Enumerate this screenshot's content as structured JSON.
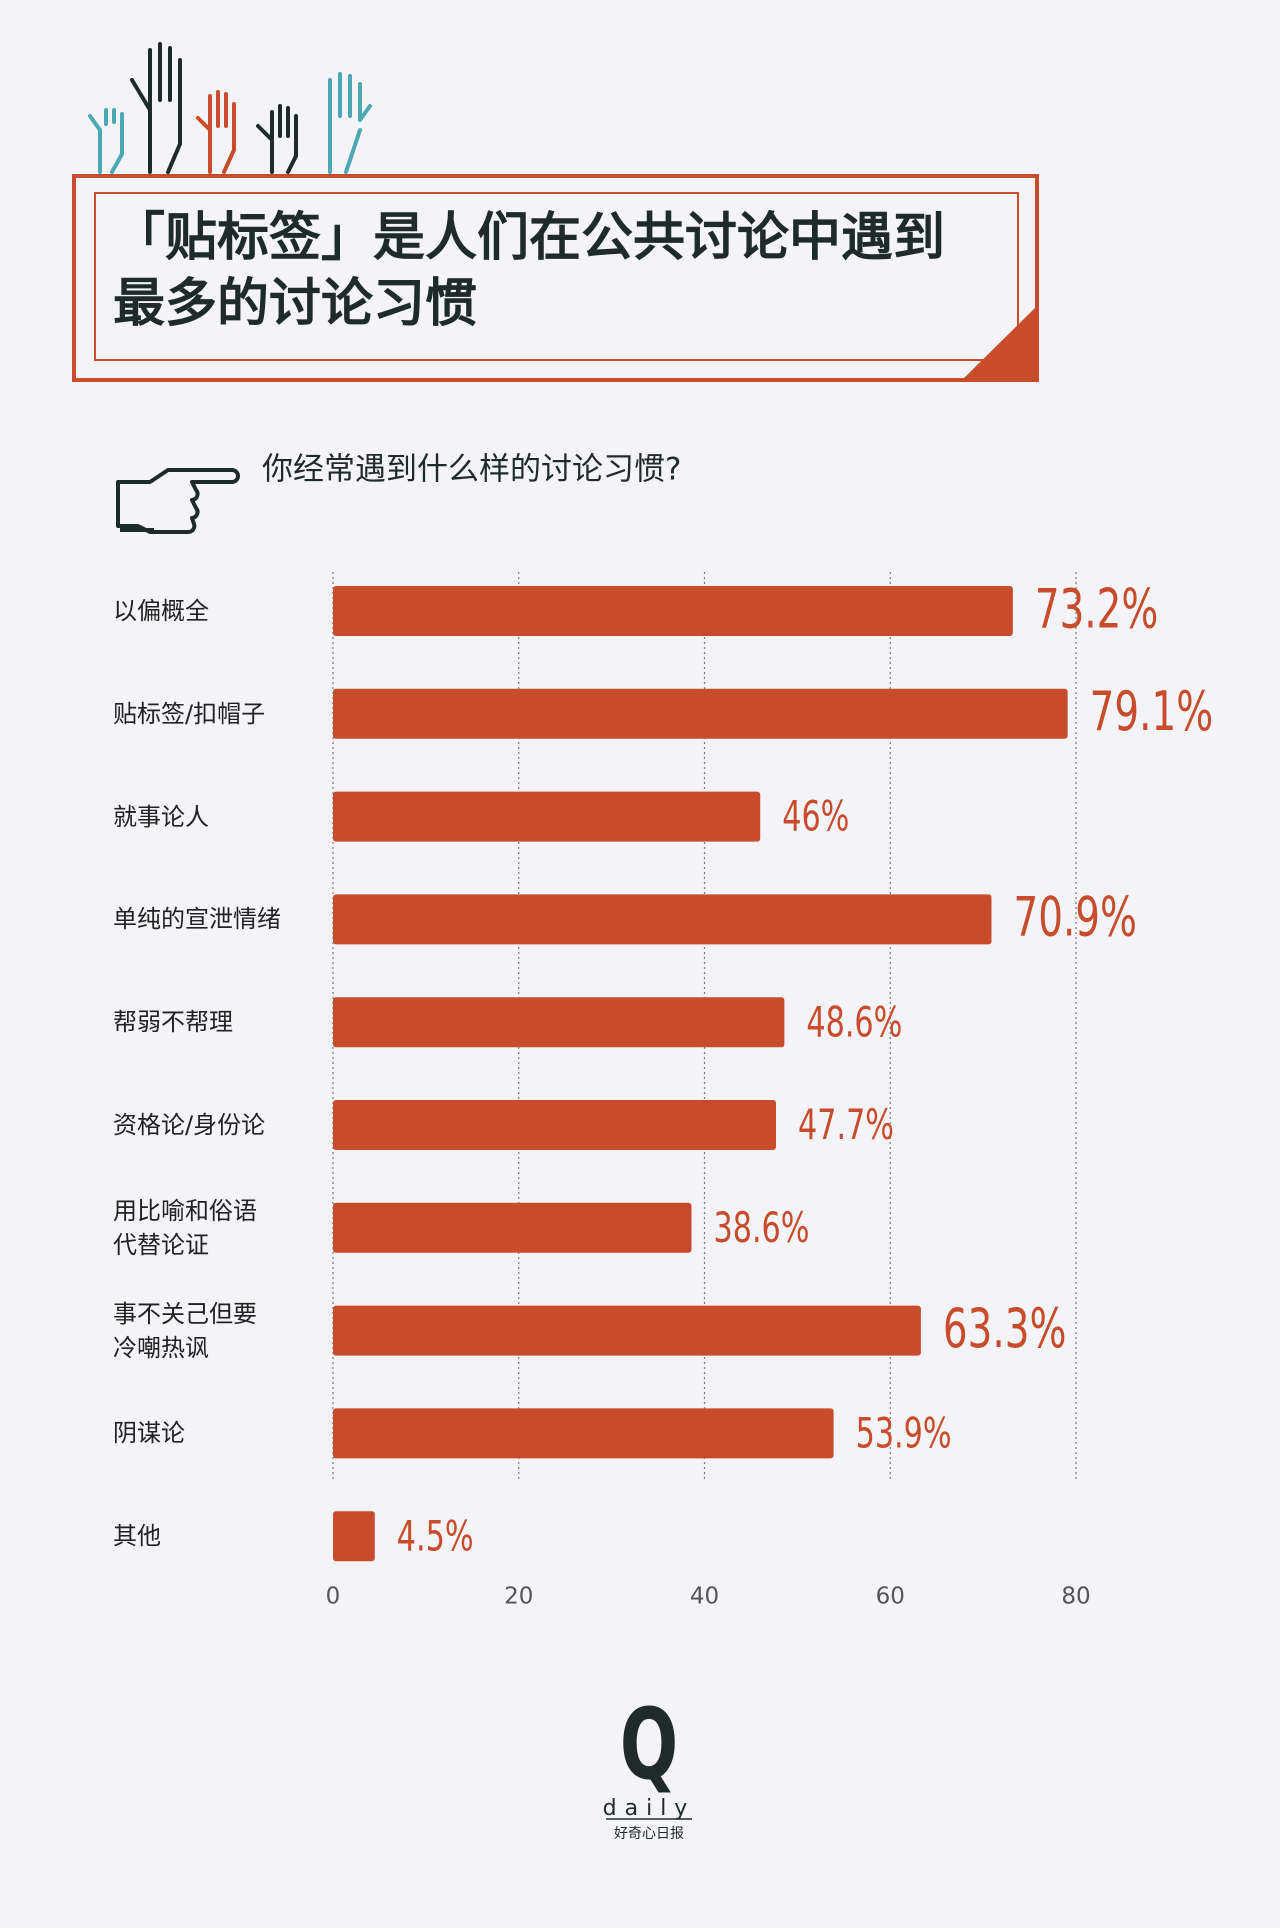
{
  "header": {
    "title": "「贴标签」是人们在公共讨论中遇到\n最多的讨论习惯"
  },
  "chart_data": {
    "type": "bar",
    "orientation": "horizontal",
    "title": "你经常遇到什么样的讨论习惯?",
    "categories": [
      "以偏概全",
      "贴标签/扣帽子",
      "就事论人",
      "单纯的宣泄情绪",
      "帮弱不帮理",
      "资格论/身份论",
      "用比喻和俗语\n代替论证",
      "事不关己但要\n冷嘲热讽",
      "阴谋论",
      "其他"
    ],
    "values": [
      73.2,
      79.1,
      46,
      70.9,
      48.6,
      47.7,
      38.6,
      63.3,
      53.9,
      4.5
    ],
    "value_labels": [
      "73.2%",
      "79.1%",
      "46%",
      "70.9%",
      "48.6%",
      "47.7%",
      "38.6%",
      "63.3%",
      "53.9%",
      "4.5%"
    ],
    "color": "#c84b2c",
    "xlim": [
      0,
      80
    ],
    "xticks": [
      0,
      20,
      40,
      60,
      80
    ],
    "grid": true
  },
  "footer": {
    "logo": "Q",
    "brand": "daily",
    "brand_cn": "好奇心日报"
  }
}
